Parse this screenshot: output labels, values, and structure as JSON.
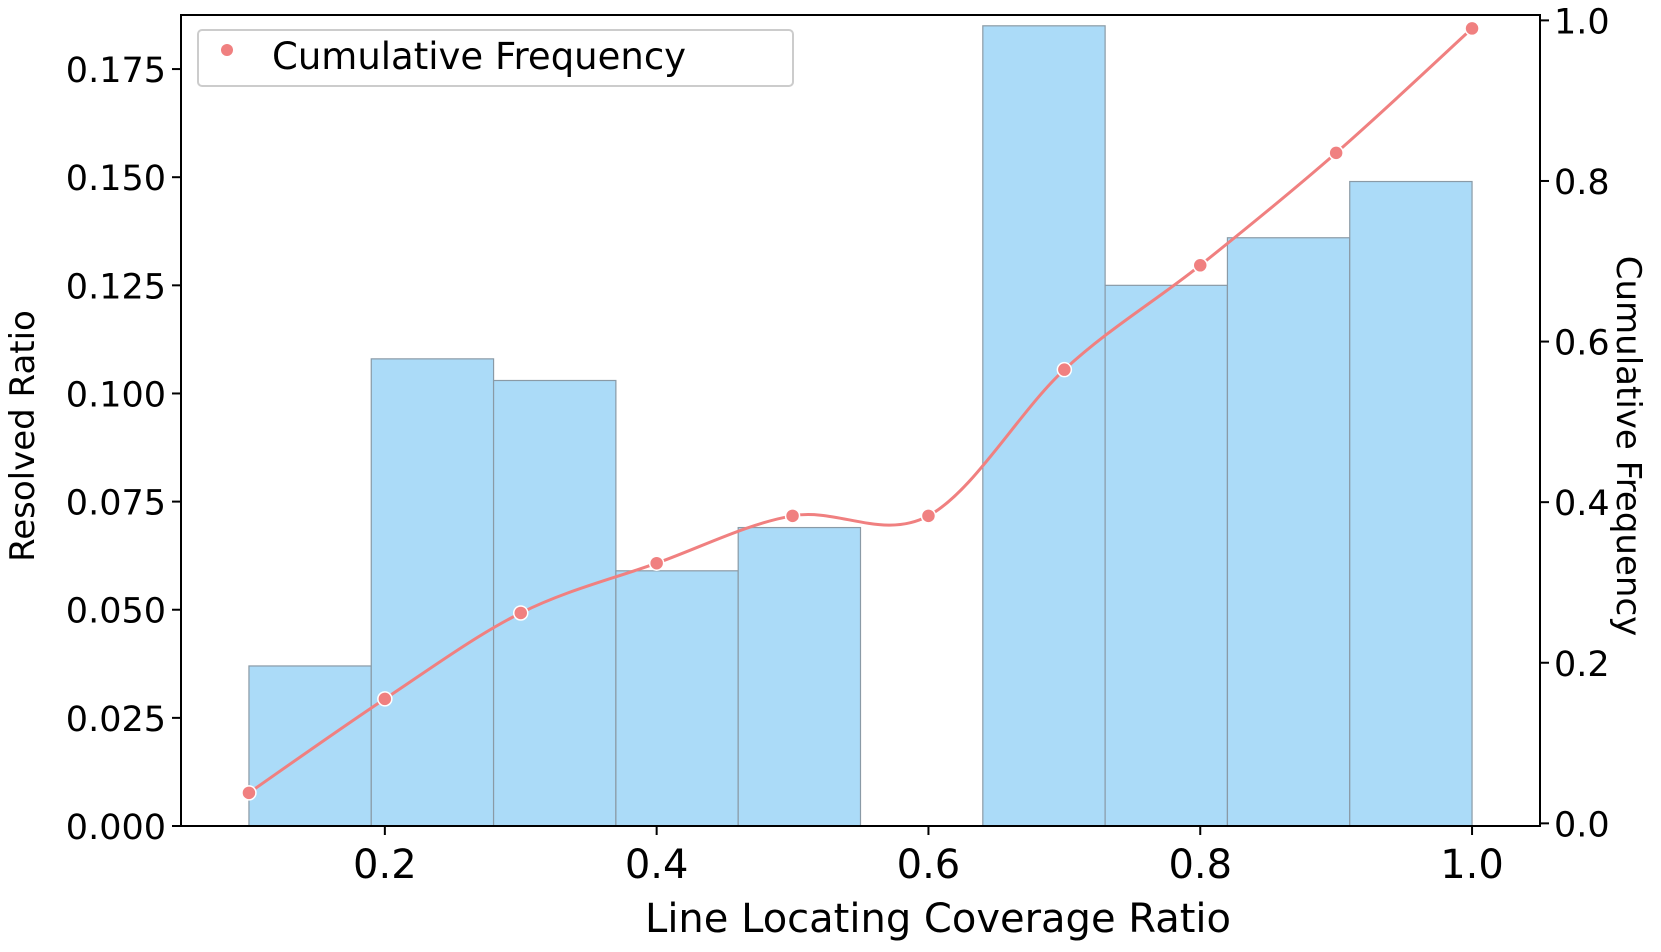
{
  "chart_data": {
    "type": "bar",
    "xlabel": "Line Locating Coverage Ratio",
    "ylabel": "Resolved Ratio",
    "y2label": "Cumulative Frequency",
    "xlim": [
      0.05,
      1.05
    ],
    "ylim": [
      0,
      0.1875
    ],
    "y2lim": [
      -0.0033,
      1.0067
    ],
    "xticks": [
      "0.2",
      "0.4",
      "0.6",
      "0.8",
      "1.0"
    ],
    "yticks": [
      "0.000",
      "0.025",
      "0.050",
      "0.075",
      "0.100",
      "0.125",
      "0.150",
      "0.175"
    ],
    "y2ticks": [
      "0.0",
      "0.2",
      "0.4",
      "0.6",
      "0.8",
      "1.0"
    ],
    "bars": [
      {
        "x0": 0.1,
        "x1": 0.19,
        "value": 0.037
      },
      {
        "x0": 0.19,
        "x1": 0.28,
        "value": 0.108
      },
      {
        "x0": 0.28,
        "x1": 0.37,
        "value": 0.103
      },
      {
        "x0": 0.37,
        "x1": 0.46,
        "value": 0.059
      },
      {
        "x0": 0.46,
        "x1": 0.55,
        "value": 0.069
      },
      {
        "x0": 0.55,
        "x1": 0.64,
        "value": 0.0
      },
      {
        "x0": 0.64,
        "x1": 0.73,
        "value": 0.185
      },
      {
        "x0": 0.73,
        "x1": 0.82,
        "value": 0.125
      },
      {
        "x0": 0.82,
        "x1": 0.91,
        "value": 0.136
      },
      {
        "x0": 0.91,
        "x1": 1.0,
        "value": 0.149
      }
    ],
    "cumulative": {
      "name": "Cumulative Frequency",
      "x": [
        0.1,
        0.2,
        0.3,
        0.4,
        0.5,
        0.6,
        0.7,
        0.8,
        0.9,
        1.0
      ],
      "y": [
        0.038,
        0.155,
        0.262,
        0.324,
        0.383,
        0.383,
        0.565,
        0.695,
        0.835,
        0.99
      ]
    },
    "legend": {
      "label": "Cumulative Frequency",
      "position": "top-left"
    },
    "colors": {
      "bar": "#abdbf8",
      "bar_edge": "#8a9aa6",
      "line": "#f08080"
    },
    "grid": false
  }
}
